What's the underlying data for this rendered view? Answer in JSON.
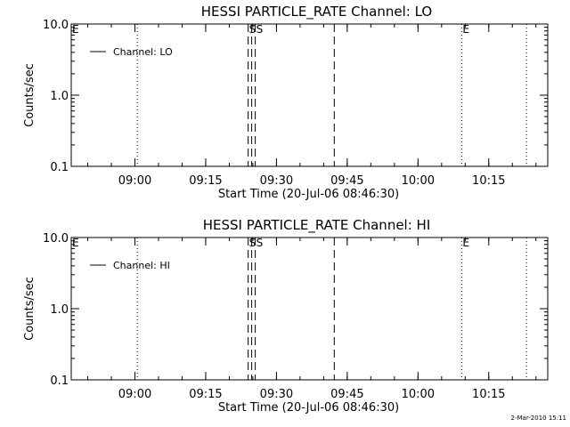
{
  "timestamp": "2-Mar-2010 15:11",
  "chart_data": [
    {
      "type": "line",
      "title": "HESSI PARTICLE_RATE Channel: LO",
      "xlabel": "Start Time (20-Jul-06 08:46:30)",
      "ylabel": "Counts/sec",
      "y_scale": "log",
      "ylim": [
        0.1,
        10.0
      ],
      "y_ticks": [
        {
          "value": 0.1,
          "label": "0.1"
        },
        {
          "value": 1.0,
          "label": "1.0"
        },
        {
          "value": 10.0,
          "label": "10.0"
        }
      ],
      "xlim": [
        "08:46:30",
        "10:27:30"
      ],
      "x_ticks": [
        {
          "time": "09:00",
          "label": "09:00"
        },
        {
          "time": "09:15",
          "label": "09:15"
        },
        {
          "time": "09:30",
          "label": "09:30"
        },
        {
          "time": "09:45",
          "label": "09:45"
        },
        {
          "time": "10:00",
          "label": "10:00"
        },
        {
          "time": "10:15",
          "label": "10:15"
        }
      ],
      "legend_position": "top-left",
      "series": [
        {
          "name": "Channel: LO",
          "x": [],
          "y": []
        }
      ],
      "markers": [
        {
          "time": "08:46:30",
          "style": "dotted",
          "label": "E"
        },
        {
          "time": "09:00:30",
          "style": "dotted",
          "label": ""
        },
        {
          "time": "09:24:00",
          "style": "dashed",
          "label": "S"
        },
        {
          "time": "09:24:45",
          "style": "dashed",
          "label": ""
        },
        {
          "time": "09:25:30",
          "style": "dashed",
          "label": "S"
        },
        {
          "time": "09:42:15",
          "style": "dashed",
          "label": ""
        },
        {
          "time": "10:09:15",
          "style": "dotted",
          "label": "E"
        },
        {
          "time": "10:23:00",
          "style": "dotted",
          "label": ""
        }
      ]
    },
    {
      "type": "line",
      "title": "HESSI PARTICLE_RATE Channel: HI",
      "xlabel": "Start Time (20-Jul-06 08:46:30)",
      "ylabel": "Counts/sec",
      "y_scale": "log",
      "ylim": [
        0.1,
        10.0
      ],
      "y_ticks": [
        {
          "value": 0.1,
          "label": "0.1"
        },
        {
          "value": 1.0,
          "label": "1.0"
        },
        {
          "value": 10.0,
          "label": "10.0"
        }
      ],
      "xlim": [
        "08:46:30",
        "10:27:30"
      ],
      "x_ticks": [
        {
          "time": "09:00",
          "label": "09:00"
        },
        {
          "time": "09:15",
          "label": "09:15"
        },
        {
          "time": "09:30",
          "label": "09:30"
        },
        {
          "time": "09:45",
          "label": "09:45"
        },
        {
          "time": "10:00",
          "label": "10:00"
        },
        {
          "time": "10:15",
          "label": "10:15"
        }
      ],
      "legend_position": "top-left",
      "series": [
        {
          "name": "Channel: HI",
          "x": [],
          "y": []
        }
      ],
      "markers": [
        {
          "time": "08:46:30",
          "style": "dotted",
          "label": "E"
        },
        {
          "time": "09:00:30",
          "style": "dotted",
          "label": ""
        },
        {
          "time": "09:24:00",
          "style": "dashed",
          "label": "S"
        },
        {
          "time": "09:24:45",
          "style": "dashed",
          "label": ""
        },
        {
          "time": "09:25:30",
          "style": "dashed",
          "label": "S"
        },
        {
          "time": "09:42:15",
          "style": "dashed",
          "label": ""
        },
        {
          "time": "10:09:15",
          "style": "dotted",
          "label": "E"
        },
        {
          "time": "10:23:00",
          "style": "dotted",
          "label": ""
        }
      ]
    }
  ]
}
